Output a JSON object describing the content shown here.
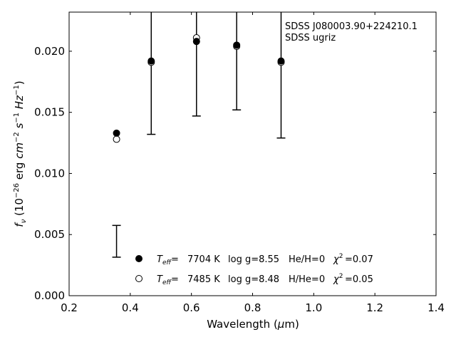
{
  "chart_data": {
    "type": "scatter",
    "title": "",
    "xlabel": "Wavelength (μm)",
    "ylabel": "f_ν (10^-26 erg cm^-2 s^-1 Hz^-1)",
    "xlim": [
      0.2,
      1.4
    ],
    "ylim": [
      0.0,
      0.0232
    ],
    "xticks": [
      0.2,
      0.4,
      0.6,
      0.8,
      1.0,
      1.2,
      1.4
    ],
    "xtick_labels": [
      "0.2",
      "0.4",
      "0.6",
      "0.8",
      "1.0",
      "1.2",
      "1.4"
    ],
    "yticks": [
      0.0,
      0.005,
      0.01,
      0.015,
      0.02
    ],
    "ytick_labels": [
      "0.000",
      "0.005",
      "0.010",
      "0.015",
      "0.020"
    ],
    "grid": false,
    "annotation": [
      "SDSS J080003.90+224210.1",
      "SDSS ugriz"
    ],
    "observed": {
      "x": [
        0.3551,
        0.4686,
        0.6166,
        0.748,
        0.8932
      ],
      "y_low": [
        0.00315,
        0.0132,
        0.0147,
        0.0152,
        0.0129
      ],
      "y_high": [
        0.00575,
        0.0232,
        0.0232,
        0.0232,
        0.0232
      ]
    },
    "series": [
      {
        "marker": "filled-circle",
        "legend": {
          "teff": "7704 K",
          "logg": "log g=8.55",
          "comp": "He/H=0",
          "chi2": "=0.07"
        },
        "x": [
          0.3551,
          0.4686,
          0.6166,
          0.748,
          0.8932
        ],
        "y": [
          0.0133,
          0.0192,
          0.0208,
          0.0205,
          0.0192
        ]
      },
      {
        "marker": "open-circle",
        "legend": {
          "teff": "7485 K",
          "logg": "log g=8.48",
          "comp": "H/He=0",
          "chi2": "=0.05"
        },
        "x": [
          0.3551,
          0.4686,
          0.6166,
          0.748,
          0.8932
        ],
        "y": [
          0.0128,
          0.0191,
          0.0211,
          0.0204,
          0.0191
        ]
      }
    ],
    "legend_position": "lower-center"
  }
}
